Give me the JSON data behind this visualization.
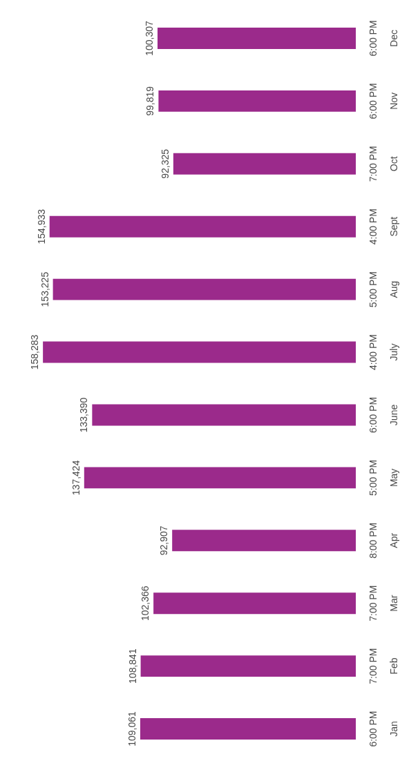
{
  "chart_data": {
    "type": "bar",
    "orientation": "horizontal",
    "categories": [
      "6:00 PM\nDec",
      "6:00 PM\nNov",
      "7:00 PM\nOct",
      "4:00 PM\nSept",
      "5:00 PM\nAug",
      "4:00 PM\nJuly",
      "6:00 PM\nJune",
      "5:00 PM\nMay",
      "8:00 PM\nApr",
      "7:00 PM\nMar",
      "7:00 PM\nFeb",
      "6:00 PM\nJan"
    ],
    "values": [
      100307,
      99819,
      92325,
      154933,
      153225,
      158283,
      133390,
      137424,
      92907,
      102366,
      108841,
      109061
    ],
    "color": "#9b2a8b",
    "value_labels": [
      "100,307",
      "99,819",
      "92,325",
      "154,933",
      "153,225",
      "158,283",
      "133,390",
      "137,424",
      "92,907",
      "102,366",
      "108,841",
      "109,061"
    ]
  }
}
